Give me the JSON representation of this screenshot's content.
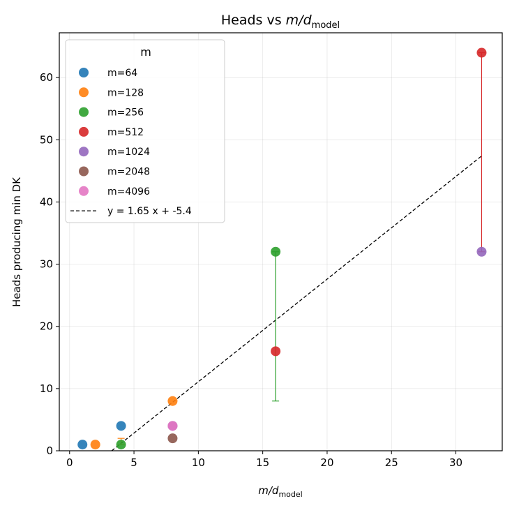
{
  "chart_data": {
    "type": "scatter",
    "title": "Heads vs ",
    "title_math": "m/d",
    "title_sub": "model",
    "xlabel": "",
    "xlabel_math": "m/d",
    "xlabel_sub": "model",
    "ylabel": "Heads producing min DK",
    "xlim": [
      -0.8,
      33.6
    ],
    "ylim": [
      0,
      67.2
    ],
    "xticks": [
      0,
      5,
      10,
      15,
      20,
      25,
      30
    ],
    "xtick_labels": [
      "0",
      "5",
      "10",
      "15",
      "20",
      "25",
      "30"
    ],
    "yticks": [
      0,
      10,
      20,
      30,
      40,
      50,
      60
    ],
    "ytick_labels": [
      "0",
      "10",
      "20",
      "30",
      "40",
      "50",
      "60"
    ],
    "grid": true,
    "legend_title": "m",
    "legend_position": "top-left",
    "series": [
      {
        "name": "m=64",
        "color": "#1f77b4",
        "points": [
          [
            1,
            1
          ],
          [
            4,
            4
          ]
        ]
      },
      {
        "name": "m=128",
        "color": "#ff7f0e",
        "points": [
          [
            2,
            1
          ],
          [
            8,
            8
          ]
        ]
      },
      {
        "name": "m=256",
        "color": "#2ca02c",
        "points": [
          [
            4,
            1
          ],
          [
            16,
            32
          ]
        ]
      },
      {
        "name": "m=512",
        "color": "#d62728",
        "points": [
          [
            16,
            16
          ],
          [
            32,
            64
          ]
        ]
      },
      {
        "name": "m=1024",
        "color": "#9467bd",
        "points": [
          [
            32,
            32
          ],
          [
            8,
            4
          ]
        ]
      },
      {
        "name": "m=2048",
        "color": "#8c564b",
        "points": [
          [
            8,
            2
          ]
        ]
      },
      {
        "name": "m=4096",
        "color": "#e377c2",
        "points": [
          [
            8,
            4
          ]
        ]
      }
    ],
    "error_bars": [
      {
        "x": 16,
        "low": 8,
        "high": 32,
        "color": "#2ca02c"
      },
      {
        "x": 32,
        "low": 32,
        "high": 64,
        "color": "#d62728"
      },
      {
        "x": 4,
        "low": 1,
        "high": 2,
        "color": "#ff7f0e"
      }
    ],
    "fit": {
      "label": "y = 1.65 x + -5.4",
      "slope": 1.65,
      "intercept": -5.4,
      "x_range": [
        0,
        32
      ],
      "color": "#000000"
    }
  }
}
